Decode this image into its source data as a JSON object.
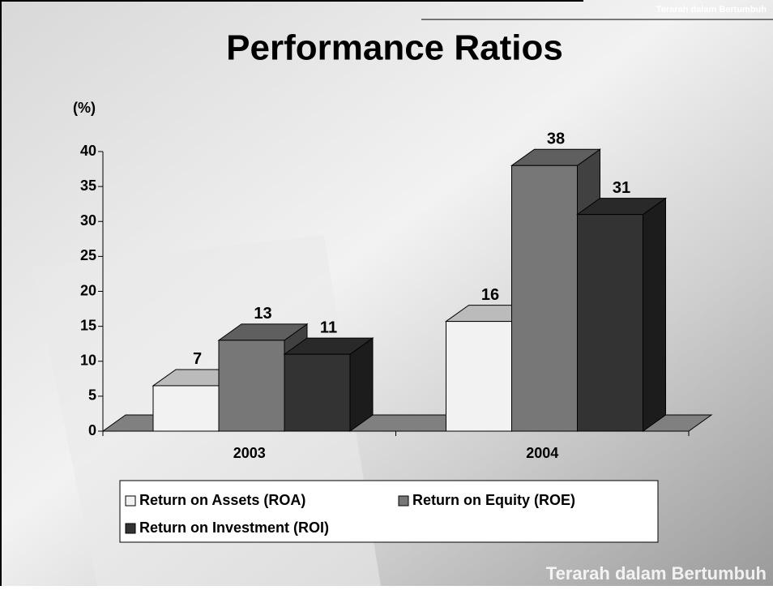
{
  "tagline": "Terarah dalam Bertumbuh",
  "footer": "Terarah dalam Bertumbuh",
  "chart_data": {
    "type": "bar3d",
    "title": "Performance Ratios",
    "y_label": "(%)",
    "categories": [
      "2003",
      "2004"
    ],
    "series": [
      {
        "name": "Return on Assets (ROA)",
        "color": "#f2f2f2",
        "values": [
          6.5,
          15.7
        ],
        "value_labels": [
          "7",
          "16"
        ]
      },
      {
        "name": "Return on Equity (ROE)",
        "color": "#777777",
        "values": [
          13,
          38
        ]
      },
      {
        "name": "Return on Investment (ROI)",
        "color": "#333333",
        "values": [
          11,
          31
        ]
      }
    ],
    "ylim": [
      0,
      40
    ],
    "yticks": [
      0,
      5,
      10,
      15,
      20,
      25,
      30,
      35,
      40
    ]
  }
}
